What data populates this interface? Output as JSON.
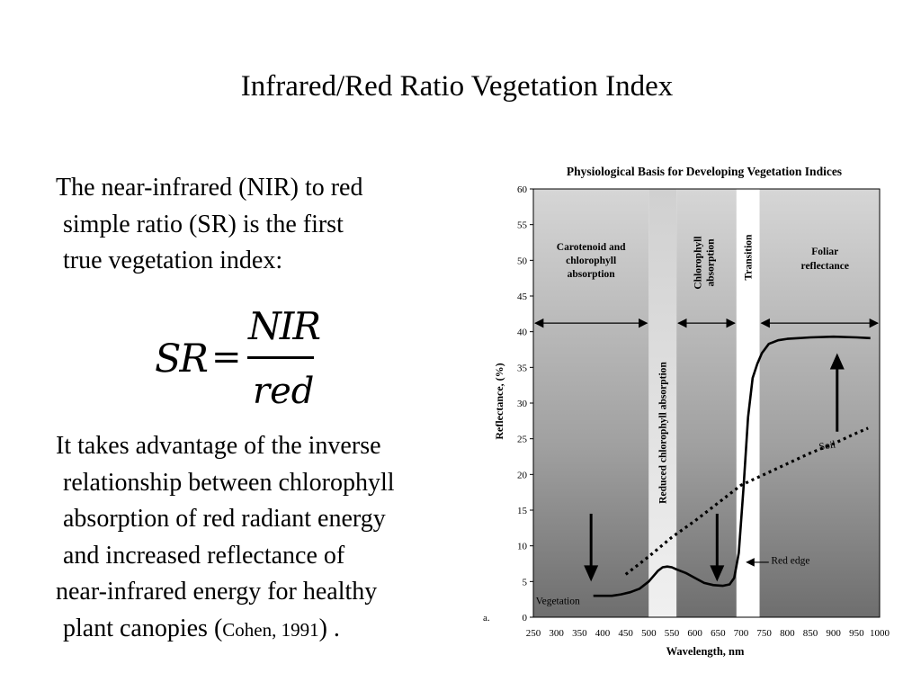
{
  "slide": {
    "title": "Infrared/Red Ratio Vegetation Index",
    "paragraph_1": [
      "The near-infrared (NIR) to red",
      "simple ratio (SR) is the first",
      "true vegetation index:"
    ],
    "formula": {
      "lhs": "SR",
      "equals": "=",
      "numerator": "NIR",
      "denominator": "red"
    },
    "paragraph_2": [
      "It takes advantage of the inverse",
      "relationship between chlorophyll",
      "absorption of red radiant energy",
      "and increased reflectance of",
      "near-infrared energy for healthy",
      "plant canopies ("
    ],
    "citation": "Cohen, 1991",
    "citation_suffix": ") ."
  },
  "chart_data": {
    "type": "line",
    "title": "Physiological Basis for Developing Vegetation Indices",
    "xlabel": "Wavelength, nm",
    "ylabel": "Reflectance, (%)",
    "xlim": [
      250,
      1000
    ],
    "ylim": [
      0,
      60
    ],
    "x_ticks": [
      250,
      300,
      350,
      400,
      450,
      500,
      550,
      600,
      650,
      700,
      750,
      800,
      850,
      900,
      950,
      1000
    ],
    "y_ticks": [
      0,
      5,
      10,
      15,
      20,
      25,
      30,
      35,
      40,
      45,
      50,
      55,
      60
    ],
    "panel_label": "a.",
    "regions": [
      {
        "x0": 250,
        "x1": 500,
        "shade": "dark",
        "label": [
          "Carotenoid and",
          "chlorophyll",
          "absorption"
        ],
        "orient": "horizontal"
      },
      {
        "x0": 500,
        "x1": 560,
        "shade": "light",
        "label": [
          "Reduced chlorophyll absorption"
        ],
        "orient": "vertical"
      },
      {
        "x0": 560,
        "x1": 690,
        "shade": "dark",
        "label": [
          "Chlorophyll",
          "absorption"
        ],
        "orient": "vertical"
      },
      {
        "x0": 690,
        "x1": 740,
        "shade": "white",
        "label": [
          "Transition"
        ],
        "orient": "vertical"
      },
      {
        "x0": 740,
        "x1": 1000,
        "shade": "dark",
        "label": [
          "Foliar",
          "reflectance"
        ],
        "orient": "horizontal"
      }
    ],
    "series": [
      {
        "name": "Vegetation",
        "style": "solid",
        "x": [
          380,
          400,
          420,
          440,
          460,
          480,
          500,
          520,
          530,
          540,
          550,
          560,
          580,
          600,
          620,
          640,
          660,
          675,
          685,
          695,
          705,
          715,
          725,
          735,
          745,
          760,
          780,
          800,
          850,
          900,
          950,
          980
        ],
        "y": [
          3,
          3,
          3,
          3.2,
          3.5,
          4,
          5,
          6.5,
          7,
          7.1,
          7,
          6.7,
          6.2,
          5.5,
          4.8,
          4.5,
          4.4,
          4.6,
          5.5,
          9,
          18,
          28,
          33.5,
          35.5,
          37,
          38.3,
          38.8,
          39,
          39.2,
          39.3,
          39.2,
          39.1
        ]
      },
      {
        "name": "Soil",
        "style": "dotted",
        "x": [
          450,
          500,
          550,
          600,
          650,
          700,
          750,
          800,
          850,
          900,
          950,
          975
        ],
        "y": [
          6,
          8.5,
          11.2,
          13.5,
          16,
          18.5,
          20,
          21.5,
          23,
          24.3,
          25.8,
          26.5
        ]
      }
    ],
    "annotations": {
      "vegetation": "Vegetation",
      "soil": "Soil",
      "red_edge": "Red edge"
    },
    "colors": {
      "dark_band": "#8c8c8c",
      "light_band": "#e6e6e6",
      "line": "#000000"
    }
  }
}
